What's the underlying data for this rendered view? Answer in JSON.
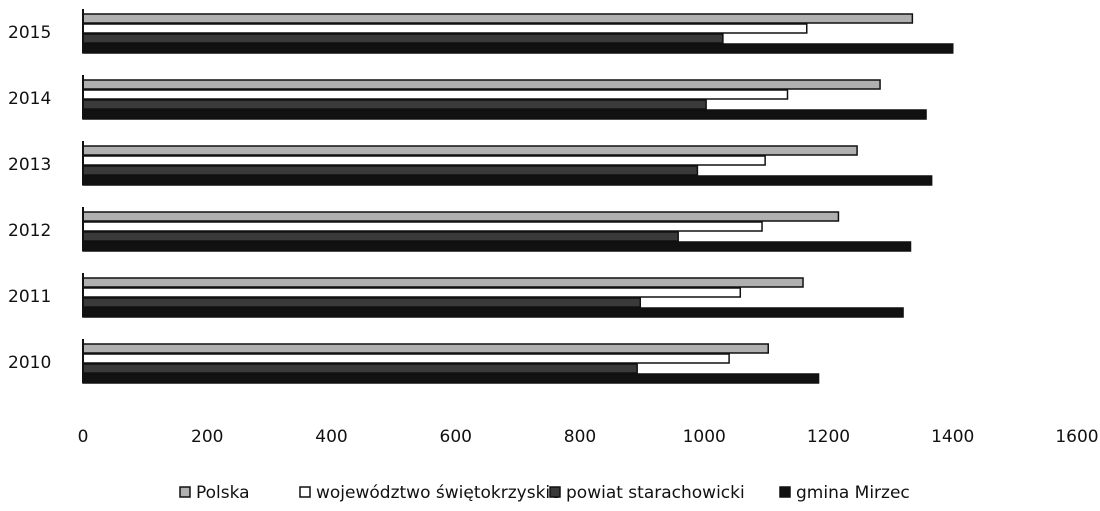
{
  "chart_data": {
    "type": "hbar",
    "categories": [
      "2015",
      "2014",
      "2013",
      "2012",
      "2011",
      "2010"
    ],
    "series": [
      {
        "name": "Polska",
        "color": "#b0b0b0",
        "values": [
          1335,
          1283,
          1246,
          1216,
          1159,
          1103
        ]
      },
      {
        "name": "województwo świętokrzyskie",
        "color": "#ffffff",
        "values": [
          1165,
          1134,
          1098,
          1093,
          1058,
          1040
        ]
      },
      {
        "name": "powiat starachowicki",
        "color": "#3a3a3a",
        "values": [
          1030,
          1003,
          989,
          958,
          897,
          892
        ]
      },
      {
        "name": "gmina Mirzec",
        "color": "#111111",
        "values": [
          1400,
          1357,
          1366,
          1332,
          1320,
          1184
        ]
      }
    ],
    "xlim": [
      0,
      1600
    ],
    "xticks": [
      0,
      200,
      400,
      600,
      800,
      1000,
      1200,
      1400,
      1600
    ],
    "grid": false,
    "legend": "bottom"
  }
}
